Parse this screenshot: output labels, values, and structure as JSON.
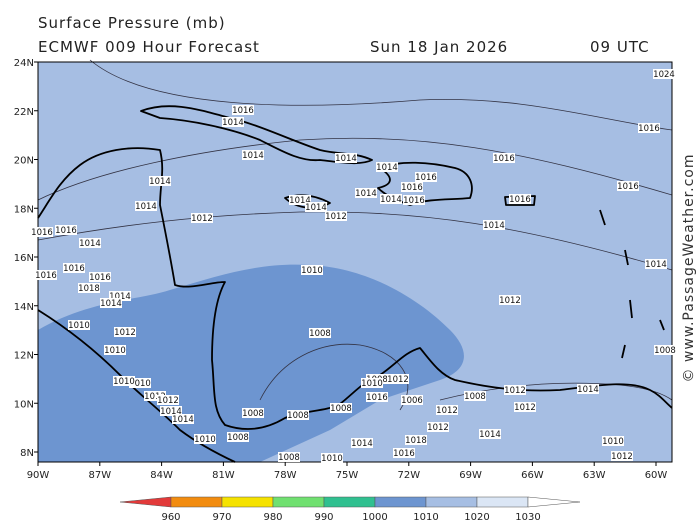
{
  "header": {
    "title": "Surface Pressure (mb)",
    "model": "ECMWF 009 Hour Forecast",
    "date": "Sun 18 Jan 2026",
    "time": "09 UTC"
  },
  "lat_labels": [
    "24N",
    "22N",
    "20N",
    "18N",
    "16N",
    "14N",
    "12N",
    "10N",
    "8N"
  ],
  "lon_labels": [
    "90W",
    "87W",
    "84W",
    "81W",
    "78W",
    "75W",
    "72W",
    "69W",
    "66W",
    "63W",
    "60W"
  ],
  "contour_labels": [
    "1016",
    "1014",
    "1014",
    "1014",
    "1014",
    "1014",
    "1012",
    "1014",
    "1016",
    "1016",
    "1014",
    "1014",
    "1016",
    "1014",
    "1014",
    "1012",
    "1016",
    "1016",
    "1016",
    "1016",
    "1014",
    "1010",
    "1012",
    "1014",
    "1014",
    "1016",
    "1016",
    "1016",
    "1016",
    "1016",
    "1018",
    "1014",
    "1014",
    "1012",
    "1010",
    "1010",
    "1008",
    "1010",
    "1010",
    "1012",
    "1012",
    "1014",
    "1014",
    "1010",
    "1008",
    "1008",
    "1008",
    "1008",
    "1008",
    "1008",
    "1012",
    "1010",
    "1016",
    "1006",
    "1008",
    "1012",
    "1014",
    "1012",
    "1012",
    "1014",
    "1010",
    "1012",
    "1012",
    "1018",
    "1016",
    "1014",
    "1008",
    "1010",
    "1024"
  ],
  "colorbar_labels": [
    "960",
    "970",
    "980",
    "990",
    "1000",
    "1010",
    "1020",
    "1030"
  ],
  "watermark": "© www.PassageWeather.com"
}
